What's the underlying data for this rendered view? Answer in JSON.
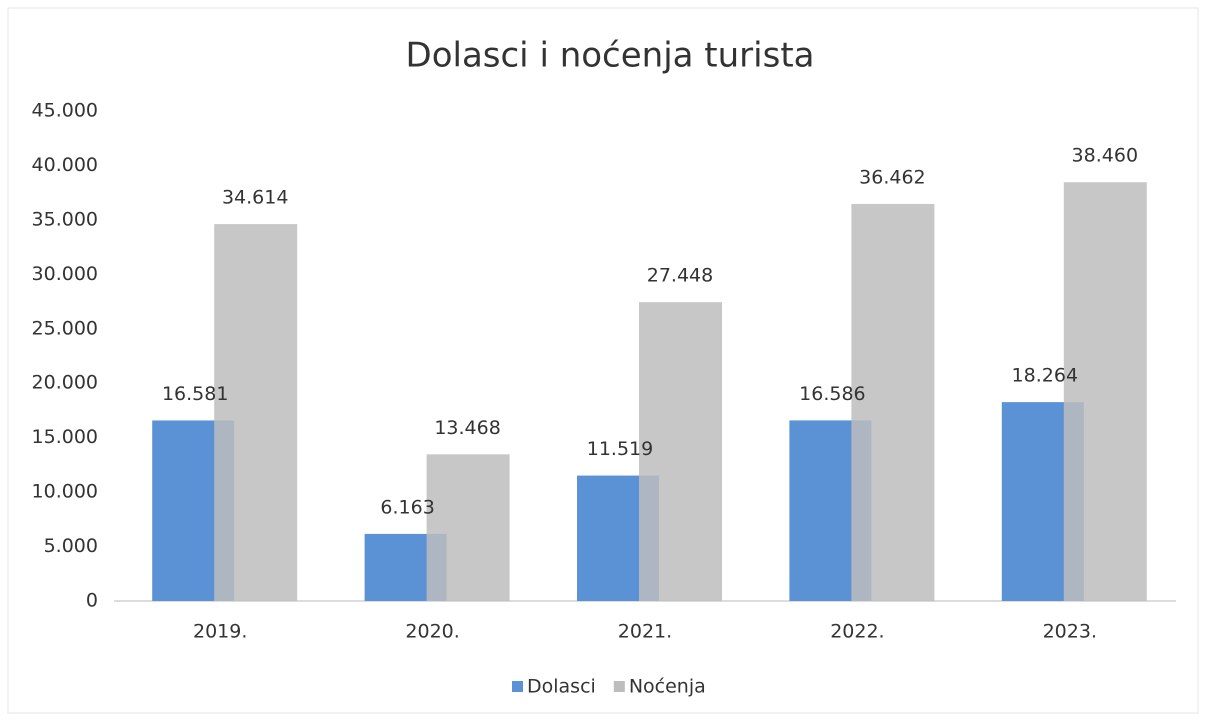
{
  "chart_data": {
    "type": "bar",
    "title": "Dolasci i noćenja turista",
    "categories": [
      "2019.",
      "2020.",
      "2021.",
      "2022.",
      "2023."
    ],
    "series": [
      {
        "name": "Dolasci",
        "color": "#5b92d6",
        "values": [
          16581,
          6163,
          11519,
          16586,
          18264
        ],
        "value_labels": [
          "16.581",
          "6.163",
          "11.519",
          "16.586",
          "18.264"
        ]
      },
      {
        "name": "Noćenja",
        "color": "#bdbdbd",
        "values": [
          34614,
          13468,
          27448,
          36462,
          38460
        ],
        "value_labels": [
          "34.614",
          "13.468",
          "27.448",
          "36.462",
          "38.460"
        ]
      }
    ],
    "ylim": [
      0,
      45000
    ],
    "yticks": [
      0,
      {
        "value": 5000,
        "label": "5.000"
      },
      {
        "value": 10000,
        "label": "10.000"
      },
      {
        "value": 15000,
        "label": "15.000"
      },
      {
        "value": 20000,
        "label": "20.000"
      },
      {
        "value": 25000,
        "label": "25.000"
      },
      {
        "value": 30000,
        "label": "30.000"
      },
      {
        "value": 35000,
        "label": "35.000"
      },
      {
        "value": 40000,
        "label": "40.000"
      },
      {
        "value": 45000,
        "label": "45.000"
      }
    ],
    "legend": "bottom"
  }
}
